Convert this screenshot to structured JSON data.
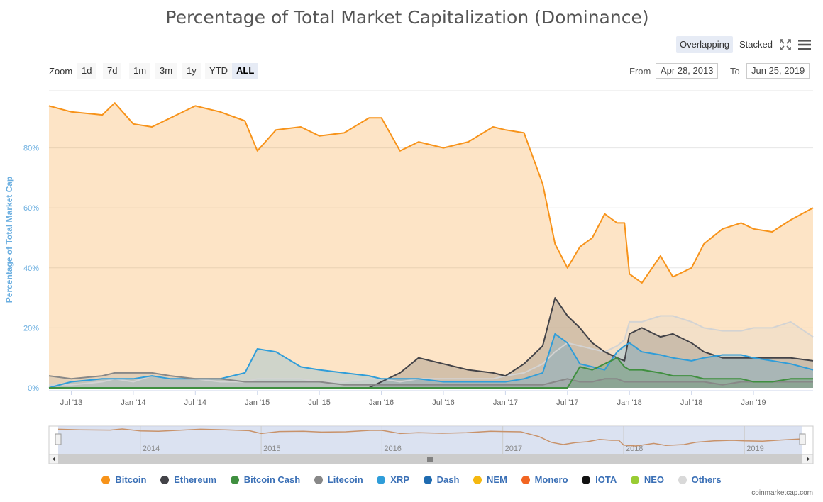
{
  "chart_data": {
    "type": "area",
    "title": "Percentage of Total Market Capitalization (Dominance)",
    "ylabel": "Percentage of Total Market Cap",
    "xlabel": "",
    "ylim": [
      0,
      100
    ],
    "y_ticks": [
      "0%",
      "20%",
      "40%",
      "60%",
      "80%"
    ],
    "x_ticks": [
      "Jul '13",
      "Jan '14",
      "Jul '14",
      "Jan '15",
      "Jul '15",
      "Jan '16",
      "Jul '16",
      "Jan '17",
      "Jul '17",
      "Jan '18",
      "Jul '18",
      "Jan '19"
    ],
    "x": [
      2013.32,
      2013.5,
      2013.75,
      2013.85,
      2014.0,
      2014.15,
      2014.3,
      2014.5,
      2014.7,
      2014.9,
      2015.0,
      2015.15,
      2015.35,
      2015.5,
      2015.7,
      2015.9,
      2016.0,
      2016.15,
      2016.3,
      2016.5,
      2016.7,
      2016.9,
      2017.0,
      2017.15,
      2017.3,
      2017.4,
      2017.5,
      2017.6,
      2017.7,
      2017.8,
      2017.9,
      2017.96,
      2018.0,
      2018.1,
      2018.25,
      2018.35,
      2018.5,
      2018.6,
      2018.75,
      2018.9,
      2019.0,
      2019.15,
      2019.3,
      2019.48
    ],
    "series": [
      {
        "name": "Bitcoin",
        "color": "#f7931a",
        "values": [
          94,
          92,
          91,
          95,
          88,
          87,
          90,
          94,
          92,
          89,
          79,
          86,
          87,
          84,
          85,
          90,
          90,
          79,
          82,
          80,
          82,
          87,
          86,
          85,
          68,
          48,
          40,
          47,
          50,
          58,
          55,
          55,
          38,
          35,
          44,
          37,
          40,
          48,
          53,
          55,
          53,
          52,
          56,
          60
        ]
      },
      {
        "name": "Others",
        "color": "#d3d3d3",
        "values": [
          1,
          1,
          2,
          3,
          2,
          4,
          3,
          3,
          2,
          2,
          3,
          3,
          3,
          2,
          2,
          3,
          3,
          2,
          3,
          3,
          3,
          3,
          4,
          5,
          8,
          12,
          15,
          14,
          13,
          12,
          14,
          16,
          22,
          22,
          24,
          24,
          22,
          20,
          19,
          19,
          20,
          20,
          22,
          17
        ]
      },
      {
        "name": "Ethereum",
        "color": "#434348",
        "values": [
          0,
          0,
          0,
          0,
          0,
          0,
          0,
          0,
          0,
          0,
          0,
          0,
          0,
          0,
          0,
          0,
          2,
          5,
          10,
          8,
          6,
          5,
          4,
          8,
          14,
          30,
          24,
          20,
          15,
          12,
          10,
          9,
          18,
          20,
          17,
          18,
          15,
          12,
          10,
          10,
          10,
          10,
          10,
          9
        ]
      },
      {
        "name": "XRP",
        "color": "#2f9dd9",
        "values": [
          0,
          2,
          3,
          3,
          3,
          4,
          3,
          3,
          3,
          5,
          13,
          12,
          7,
          6,
          5,
          4,
          3,
          3,
          3,
          2,
          2,
          2,
          2,
          3,
          5,
          18,
          15,
          8,
          7,
          6,
          12,
          14,
          15,
          12,
          11,
          10,
          9,
          10,
          11,
          11,
          10,
          9,
          8,
          6
        ]
      },
      {
        "name": "Litecoin",
        "color": "#888888",
        "values": [
          4,
          3,
          4,
          5,
          5,
          5,
          4,
          3,
          3,
          2,
          2,
          2,
          2,
          2,
          1,
          1,
          1,
          1,
          1,
          1,
          1,
          1,
          1,
          1,
          1,
          2,
          3,
          2,
          2,
          3,
          3,
          2,
          2,
          2,
          2,
          2,
          2,
          2,
          1,
          2,
          2,
          2,
          2,
          2
        ]
      },
      {
        "name": "Bitcoin Cash",
        "color": "#3f8f3f",
        "values": [
          0,
          0,
          0,
          0,
          0,
          0,
          0,
          0,
          0,
          0,
          0,
          0,
          0,
          0,
          0,
          0,
          0,
          0,
          0,
          0,
          0,
          0,
          0,
          0,
          0,
          0,
          0,
          7,
          6,
          8,
          10,
          7,
          6,
          6,
          5,
          4,
          4,
          3,
          3,
          3,
          2,
          2,
          3,
          3
        ]
      }
    ],
    "legend": [
      "Bitcoin",
      "Ethereum",
      "Bitcoin Cash",
      "Litecoin",
      "XRP",
      "Dash",
      "NEM",
      "Monero",
      "IOTA",
      "NEO",
      "Others"
    ],
    "legend_colors": [
      "#f7931a",
      "#434348",
      "#3f8f3f",
      "#888888",
      "#2f9dd9",
      "#1f6bb0",
      "#f5b80f",
      "#f26522",
      "#111111",
      "#99cc33",
      "#d9d9d9"
    ],
    "navigator_ticks": [
      "2014",
      "2015",
      "2016",
      "2017",
      "2018",
      "2019"
    ]
  },
  "controls": {
    "overlapping_label": "Overlapping",
    "stacked_label": "Stacked",
    "zoom_label": "Zoom",
    "zoom_buttons": [
      "1d",
      "7d",
      "1m",
      "3m",
      "1y",
      "YTD",
      "ALL"
    ],
    "from_label": "From",
    "from_value": "Apr 28, 2013",
    "to_label": "To",
    "to_value": "Jun 25, 2019"
  },
  "credit": "coinmarketcap.com"
}
